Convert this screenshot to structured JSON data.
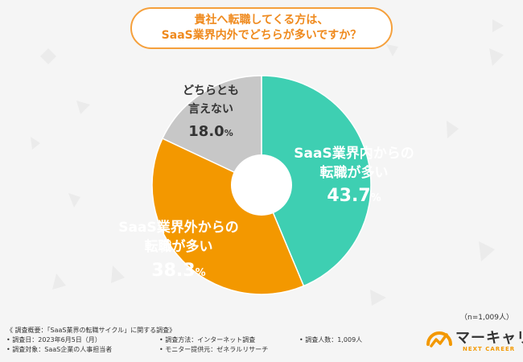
{
  "question": {
    "line1": "貴社へ転職してくる方は、",
    "line2": "SaaS業界内外でどちらが多いですか？"
  },
  "chart_data": {
    "type": "pie",
    "style": "donut",
    "slices": [
      {
        "label_lines": [
          "SaaS業界内からの",
          "転職が多い"
        ],
        "value": 43.7,
        "value_main": "43.7",
        "color": "#3ecfb2",
        "label_color": "#ffffff"
      },
      {
        "label_lines": [
          "SaaS業界外からの",
          "転職が多い"
        ],
        "value": 38.3,
        "value_main": "38.3",
        "color": "#f39800",
        "label_color": "#ffffff"
      },
      {
        "label_lines": [
          "どちらとも",
          "言えない"
        ],
        "value": 18.0,
        "value_main": "18.0",
        "color": "#c7c7c7",
        "label_color": "#333333"
      }
    ],
    "unit": "%"
  },
  "sample_note": "（n=1,009人）",
  "survey": {
    "summary": "《 調査概要：「SaaS業界の転職サイクル」に関する調査》",
    "date": "• 調査日：2023年6月5日（月）",
    "method": "• 調査方法：インターネット調査",
    "respondents": "• 調査人数：1,009人",
    "target": "• 調査対象：SaaS企業の人事担当者",
    "provider": "• モニター提供元：ゼネラルリサーチ"
  },
  "logo": {
    "name": "マーキャリ",
    "sub": "NEXT CAREER",
    "accent": "#f39800"
  }
}
